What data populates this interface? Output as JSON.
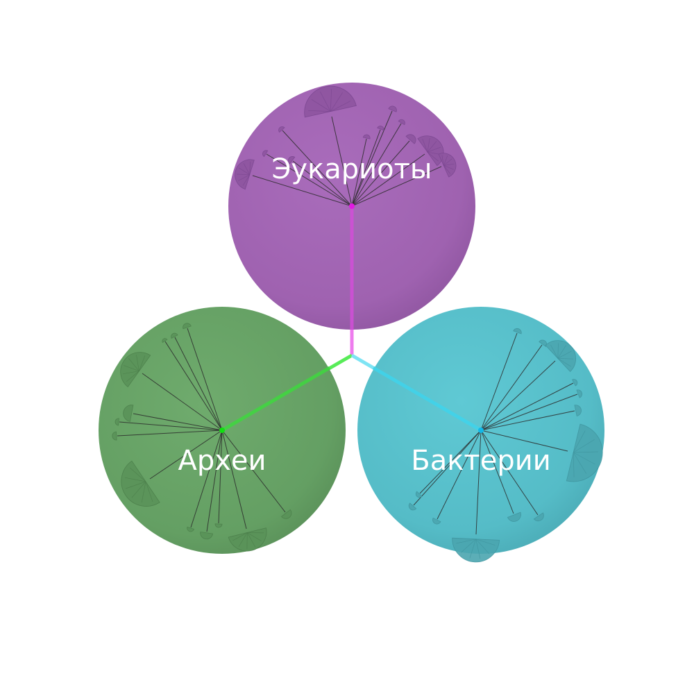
{
  "diagram": {
    "domains": [
      {
        "id": "eukaryotes",
        "label": "Эукариоты",
        "color": "#a066b2",
        "connector_color": "#e64ee6"
      },
      {
        "id": "archaea",
        "label": "Археи",
        "color": "#67a266",
        "connector_color": "#3fe63f"
      },
      {
        "id": "bacteria",
        "label": "Бактерии",
        "color": "#57c0cc",
        "connector_color": "#3fd4ec"
      }
    ]
  }
}
